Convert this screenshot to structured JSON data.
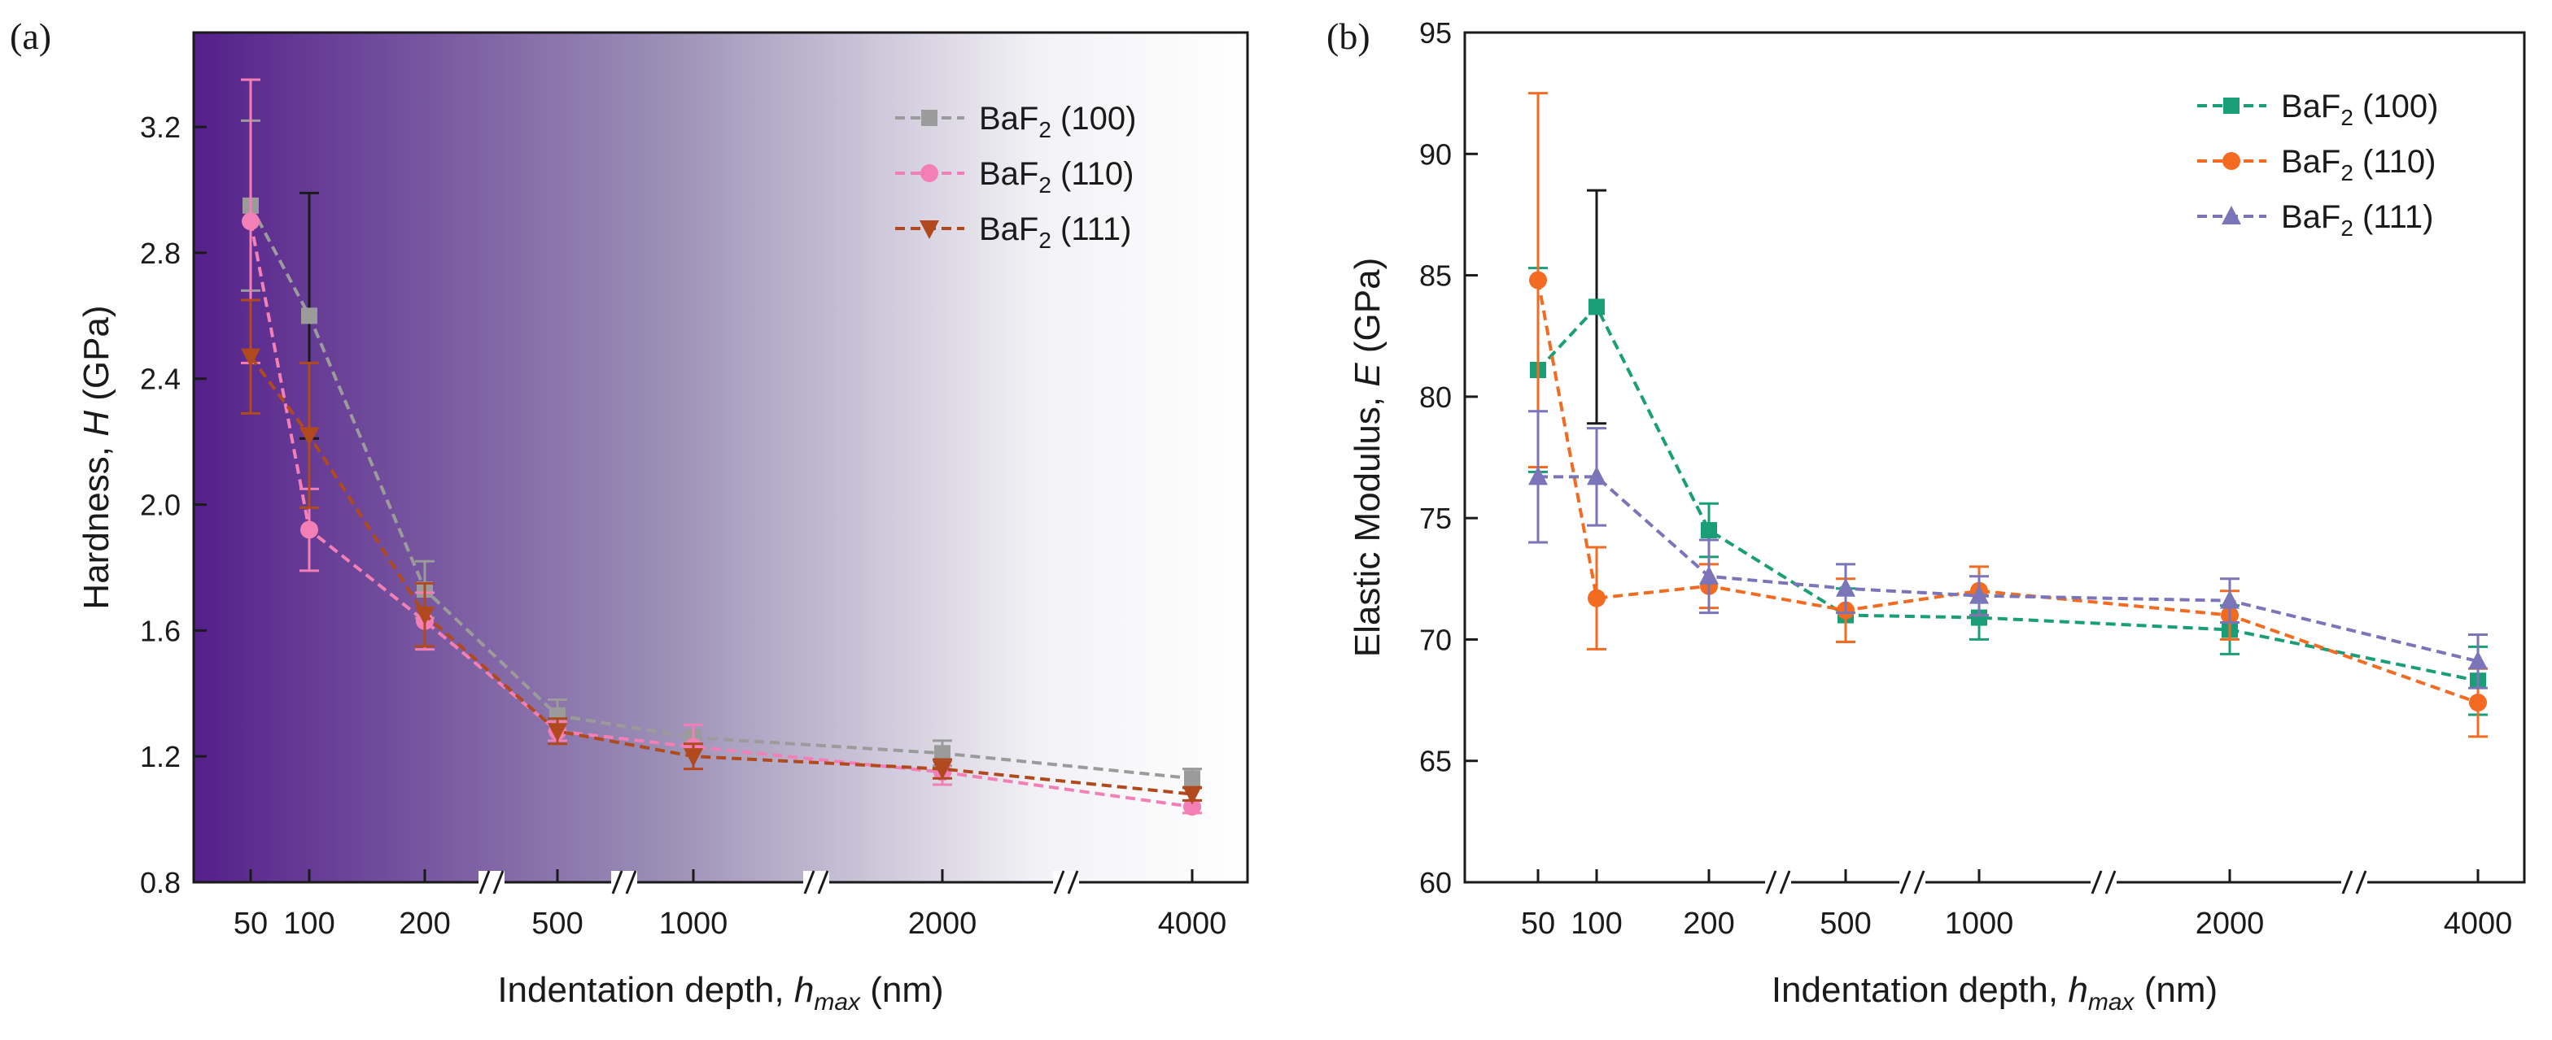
{
  "chart_data": [
    {
      "panel": "(a)",
      "type": "line",
      "ylabel_prefix": "Hardness, ",
      "ylabel_var": "H",
      "ylabel_unit": " (GPa)",
      "xlabel_prefix": "Indentation depth, ",
      "xlabel_var": "h",
      "xlabel_sub": "max",
      "xlabel_unit": " (nm)",
      "categories": [
        "50",
        "100",
        "200",
        "500",
        "1000",
        "2000",
        "4000"
      ],
      "ylim": [
        0.8,
        3.5
      ],
      "yticks": [
        "0.8",
        "1.2",
        "1.6",
        "2.0",
        "2.4",
        "2.8",
        "3.2"
      ],
      "background_gradient": [
        "#541f8a",
        "#ffffff"
      ],
      "series": [
        {
          "name_base": "BaF",
          "name_sub": "2",
          "name_suffix": " (100)",
          "marker": "square",
          "color": "#9b9b9b",
          "values": [
            2.95,
            2.6,
            1.73,
            1.33,
            1.26,
            1.21,
            1.13
          ],
          "errors": [
            0.27,
            0.39,
            0.09,
            0.05,
            0.04,
            0.04,
            0.03
          ]
        },
        {
          "name_base": "BaF",
          "name_sub": "2",
          "name_suffix": " (110)",
          "marker": "circle",
          "color": "#f27fb5",
          "values": [
            2.9,
            1.92,
            1.63,
            1.28,
            1.23,
            1.15,
            1.04
          ],
          "errors": [
            0.45,
            0.13,
            0.09,
            0.03,
            0.07,
            0.04,
            0.02
          ]
        },
        {
          "name_base": "BaF",
          "name_sub": "2",
          "name_suffix": " (111)",
          "marker": "triangle-down",
          "color": "#b04a1e",
          "values": [
            2.47,
            2.22,
            1.65,
            1.28,
            1.2,
            1.16,
            1.08
          ],
          "errors": [
            0.18,
            0.23,
            0.1,
            0.04,
            0.04,
            0.03,
            0.02
          ]
        }
      ]
    },
    {
      "panel": "(b)",
      "type": "line",
      "ylabel_prefix": "Elastic Modulus, ",
      "ylabel_var": "E",
      "ylabel_unit": " (GPa)",
      "xlabel_prefix": "Indentation depth, ",
      "xlabel_var": "h",
      "xlabel_sub": "max",
      "xlabel_unit": " (nm)",
      "categories": [
        "50",
        "100",
        "200",
        "500",
        "1000",
        "2000",
        "4000"
      ],
      "ylim": [
        60,
        95
      ],
      "yticks": [
        "60",
        "65",
        "70",
        "75",
        "80",
        "85",
        "90",
        "95"
      ],
      "series": [
        {
          "name_base": "BaF",
          "name_sub": "2",
          "name_suffix": " (100)",
          "marker": "square",
          "color": "#1a9e77",
          "values": [
            81.1,
            83.7,
            74.5,
            71.0,
            70.9,
            70.4,
            68.3
          ],
          "errors": [
            4.2,
            4.8,
            1.1,
            1.1,
            0.9,
            1.0,
            1.4
          ]
        },
        {
          "name_base": "BaF",
          "name_sub": "2",
          "name_suffix": " (110)",
          "marker": "circle",
          "color": "#f26b21",
          "values": [
            84.8,
            71.7,
            72.2,
            71.2,
            72.0,
            71.0,
            67.4
          ],
          "errors": [
            7.7,
            2.1,
            0.9,
            1.3,
            1.0,
            1.0,
            1.4
          ]
        },
        {
          "name_base": "BaF",
          "name_sub": "2",
          "name_suffix": " (111)",
          "marker": "triangle-up",
          "color": "#7a75b8",
          "values": [
            76.7,
            76.7,
            72.6,
            72.1,
            71.8,
            71.6,
            69.1
          ],
          "errors": [
            2.7,
            2.0,
            1.5,
            1.0,
            0.8,
            0.9,
            1.1
          ]
        }
      ]
    }
  ]
}
